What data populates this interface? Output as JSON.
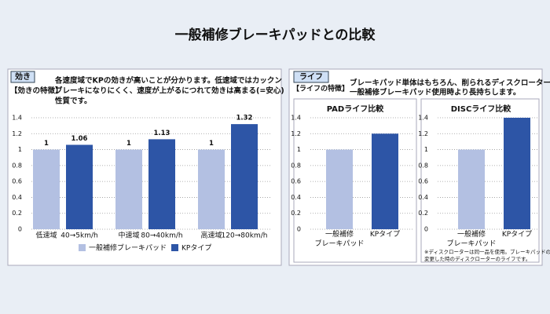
{
  "title": "一般補修ブレーキパッドとの比較",
  "panels": [
    {
      "tag": "効き",
      "label": "【効きの特徴】",
      "description": [
        "各速度域でKPの効きが高いことが分かります。低速域ではカックン",
        "ブレーキになりにくく、速度が上がるにつれて効きは高まる(=安心)",
        "性質です。"
      ]
    },
    {
      "tag": "ライフ",
      "label": "【ライフの特徴】",
      "description": [
        "ブレーキパッド単体はもちろん、削られるディスクローターも",
        "一般補修ブレーキパッド使用時より長持ちします。"
      ]
    }
  ],
  "chart_data": [
    {
      "type": "bar",
      "categories": [
        "低速域",
        "中速域",
        "高速域"
      ],
      "category_details": [
        "40→5km/h",
        "80→40km/h",
        "120→80km/h"
      ],
      "series": [
        {
          "name": "一般補修ブレーキパッド",
          "color": "#b3c0e2",
          "values": [
            1,
            1,
            1
          ]
        },
        {
          "name": "KPタイプ",
          "color": "#2d55a6",
          "values": [
            1.06,
            1.13,
            1.32
          ]
        }
      ],
      "ylim": [
        0,
        1.4
      ],
      "yticks": [
        0,
        0.2,
        0.4,
        0.6,
        0.8,
        1,
        1.2,
        1.4
      ],
      "grid": true,
      "value_labels_shown": true,
      "legend": "bottom"
    },
    {
      "type": "bar",
      "title": "PADライフ比較",
      "categories": [
        "一般補修\nブレーキパッド",
        "KPタイプ"
      ],
      "values": [
        1,
        1.2
      ],
      "colors": [
        "#b3c0e2",
        "#2d55a6"
      ],
      "ylim": [
        0,
        1.4
      ],
      "yticks": [
        0,
        0.2,
        0.4,
        0.6,
        0.8,
        1,
        1.2,
        1.4
      ],
      "grid": true
    },
    {
      "type": "bar",
      "title": "DISCライフ比較",
      "categories": [
        "一般補修\nブレーキパッド",
        "KPタイプ"
      ],
      "values": [
        1,
        1.4
      ],
      "colors": [
        "#b3c0e2",
        "#2d55a6"
      ],
      "ylim": [
        0,
        1.4
      ],
      "yticks": [
        0,
        0.2,
        0.4,
        0.6,
        0.8,
        1,
        1.2,
        1.4
      ],
      "grid": true,
      "note": [
        "※ディスクローターは同一品を使用。ブレーキパッドのみ",
        "変更した時のディスクローターのライフです。"
      ]
    }
  ]
}
